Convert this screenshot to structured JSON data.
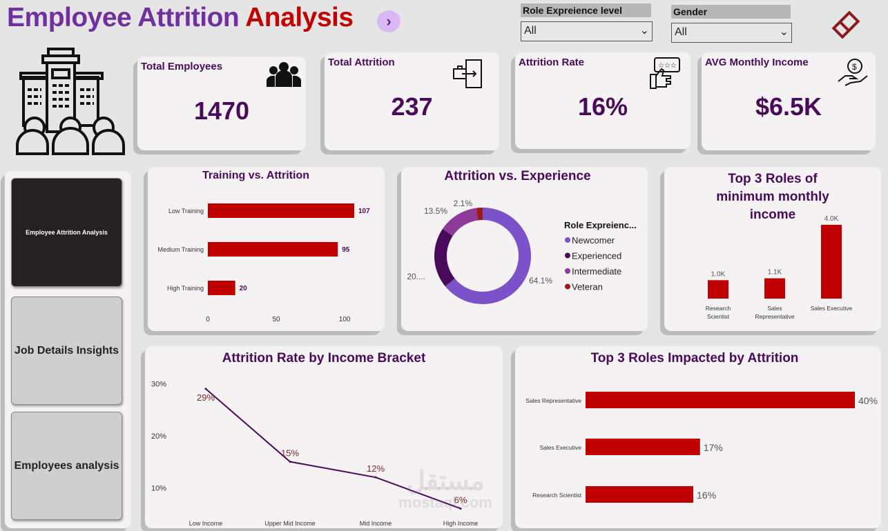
{
  "header": {
    "title_part1": "Employee Attrition",
    "title_part2": "Analysis",
    "nav_icon": "chevron-right-icon"
  },
  "filters": [
    {
      "label": "Role Expreience level",
      "value": "All"
    },
    {
      "label": "Gender",
      "value": "All"
    }
  ],
  "clear_filter_icon": "eraser-icon",
  "kpis": [
    {
      "label": "Total Employees",
      "value": "1470",
      "icon": "people-icon"
    },
    {
      "label": "Total Attrition",
      "value": "237",
      "icon": "exit-door-icon"
    },
    {
      "label": "Attrition Rate",
      "value": "16%",
      "icon": "rating-thumbs-up-icon"
    },
    {
      "label": "AVG Monthly Income",
      "value": "$6.5K",
      "icon": "money-hand-icon"
    }
  ],
  "sidebar": {
    "items": [
      {
        "label": "Employee Attrition Analysis",
        "active": true
      },
      {
        "label": "Job Details Insights"
      },
      {
        "label": "Employees analysis"
      }
    ]
  },
  "watermark": {
    "arabic": "مستقل",
    "latin": "mostaql.com"
  },
  "colors": {
    "bar": "#c00000",
    "title": "#4a0a5a",
    "line": "#4a0a5a",
    "newcomer": "#7b52c9",
    "experienced": "#4a0a5a",
    "intermediate": "#8e3a98",
    "veteran": "#9b1b1b"
  },
  "chart_data": [
    {
      "type": "bar",
      "orientation": "horizontal",
      "title": "Training vs. Attrition",
      "categories": [
        "Low Training",
        "Medium Training",
        "High Training"
      ],
      "values": [
        107,
        95,
        20
      ],
      "data_labels": [
        "107",
        "95",
        "20"
      ],
      "xticks": [
        "0",
        "50",
        "100"
      ],
      "xlim": [
        0,
        120
      ]
    },
    {
      "type": "pie",
      "donut": true,
      "title": "Attrition vs. Experience",
      "legend_title": "Role Expreienc...",
      "legend_position": "right",
      "slices": [
        {
          "name": "Newcomer",
          "value": 64.1,
          "label": "64.1%"
        },
        {
          "name": "Experienced",
          "value": 20.3,
          "label": "20...."
        },
        {
          "name": "Intermediate",
          "value": 13.5,
          "label": "13.5%"
        },
        {
          "name": "Veteran",
          "value": 2.1,
          "label": "2.1%"
        }
      ]
    },
    {
      "type": "bar",
      "title": "Top 3 Roles of minimum monthly income",
      "categories": [
        "Research Scientist",
        "Sales Representative",
        "Sales Executive"
      ],
      "values": [
        1000,
        1100,
        4000
      ],
      "data_labels": [
        "1.0K",
        "1.1K",
        "4.0K"
      ]
    },
    {
      "type": "line",
      "title": "Attrition Rate by Income Bracket",
      "categories": [
        "Low Income",
        "Upper Mid Income",
        "Mid Income",
        "High Income"
      ],
      "values": [
        29,
        15,
        12,
        6
      ],
      "data_labels": [
        "29%",
        "15%",
        "12%",
        "6%"
      ],
      "yticks": [
        "30%",
        "20%",
        "10%"
      ],
      "ylim": [
        5,
        31.5
      ]
    },
    {
      "type": "bar",
      "orientation": "horizontal",
      "title": "Top 3 Roles Impacted by Attrition",
      "categories": [
        "Sales Representative",
        "Sales Executive",
        "Research Scientist"
      ],
      "values": [
        40,
        17,
        16
      ],
      "data_labels": [
        "40%",
        "17%",
        "16%"
      ],
      "xlim": [
        0,
        40
      ]
    }
  ]
}
